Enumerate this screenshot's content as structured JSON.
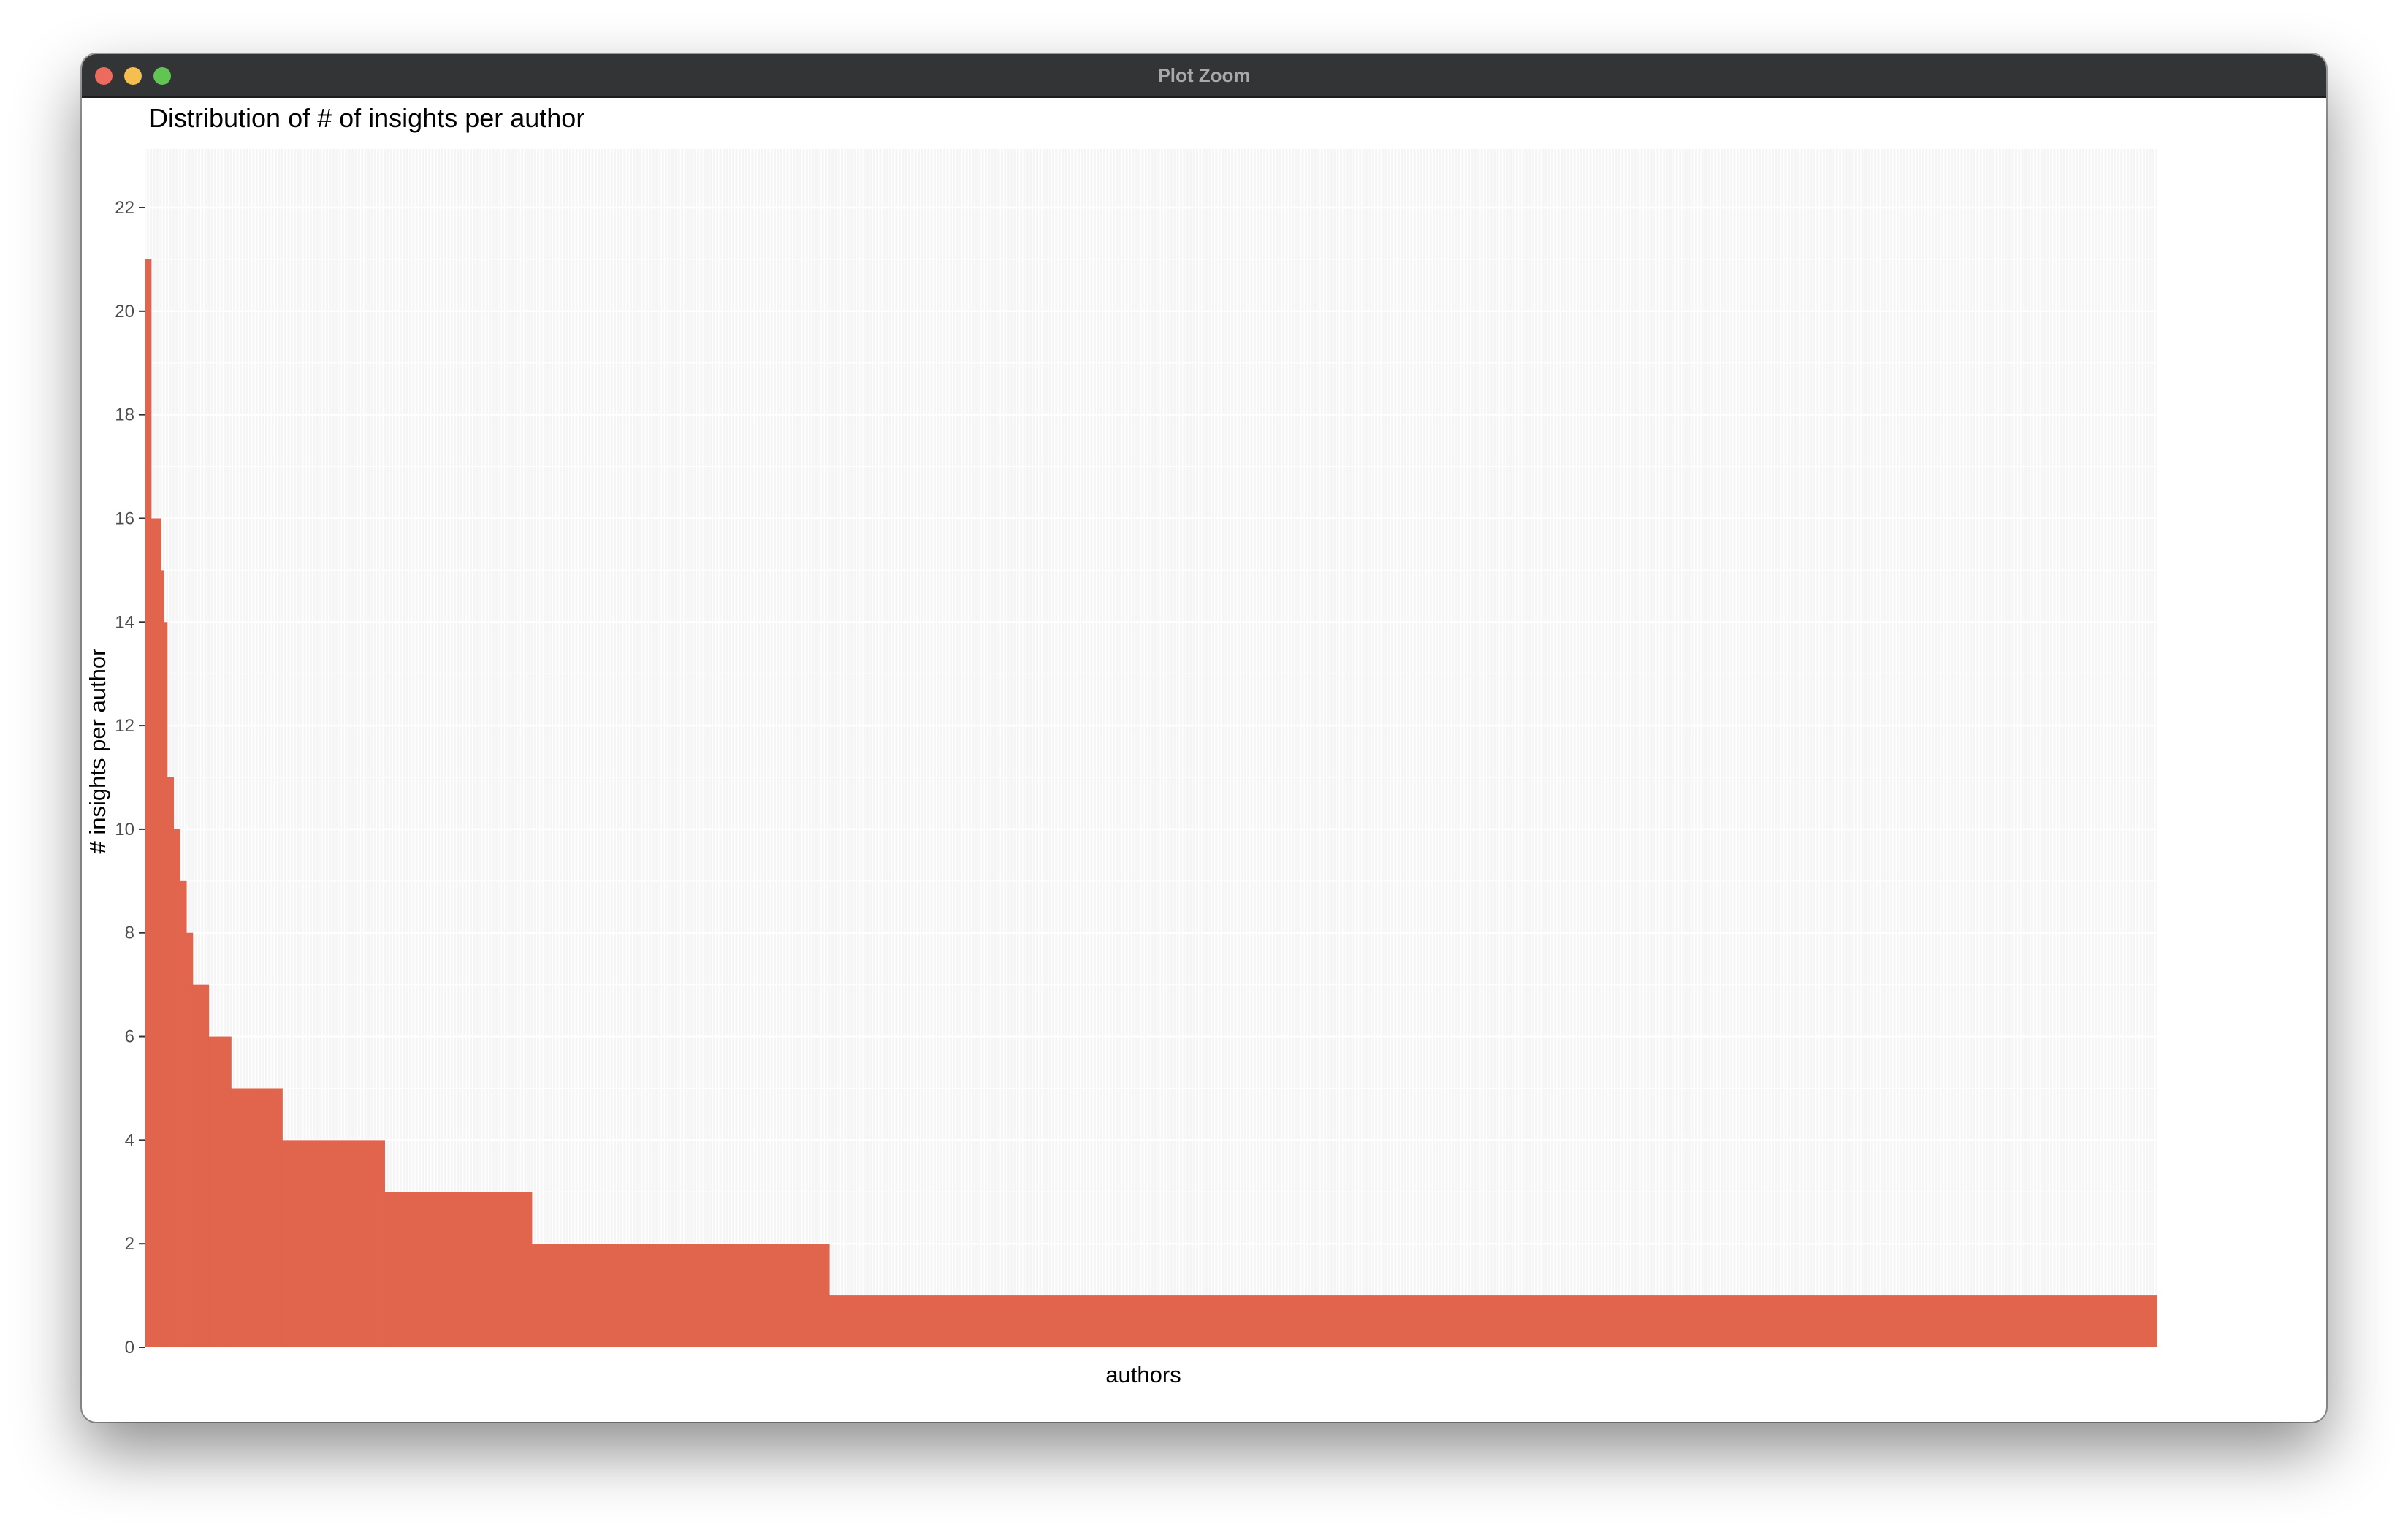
{
  "window": {
    "title": "Plot Zoom"
  },
  "chart_data": {
    "type": "bar",
    "title": "Distribution of # of insights per author",
    "xlabel": "authors",
    "ylabel": "# insights per author",
    "ylim": [
      0,
      22
    ],
    "yticks": [
      0,
      2,
      4,
      6,
      8,
      10,
      12,
      14,
      16,
      18,
      20,
      22
    ],
    "x_tick_labels_shown": false,
    "grid": true,
    "bar_color": "#e0654c",
    "panel_background": "#f5f5f5",
    "series": [
      {
        "groups": [
          {
            "value": 21,
            "authors": 2
          },
          {
            "value": 16,
            "authors": 3
          },
          {
            "value": 15,
            "authors": 1
          },
          {
            "value": 14,
            "authors": 1
          },
          {
            "value": 11,
            "authors": 2
          },
          {
            "value": 10,
            "authors": 2
          },
          {
            "value": 9,
            "authors": 2
          },
          {
            "value": 8,
            "authors": 2
          },
          {
            "value": 7,
            "authors": 5
          },
          {
            "value": 6,
            "authors": 7
          },
          {
            "value": 5,
            "authors": 16
          },
          {
            "value": 4,
            "authors": 32
          },
          {
            "value": 3,
            "authors": 46
          },
          {
            "value": 2,
            "authors": 93
          },
          {
            "value": 1,
            "authors": 415
          }
        ]
      }
    ]
  }
}
